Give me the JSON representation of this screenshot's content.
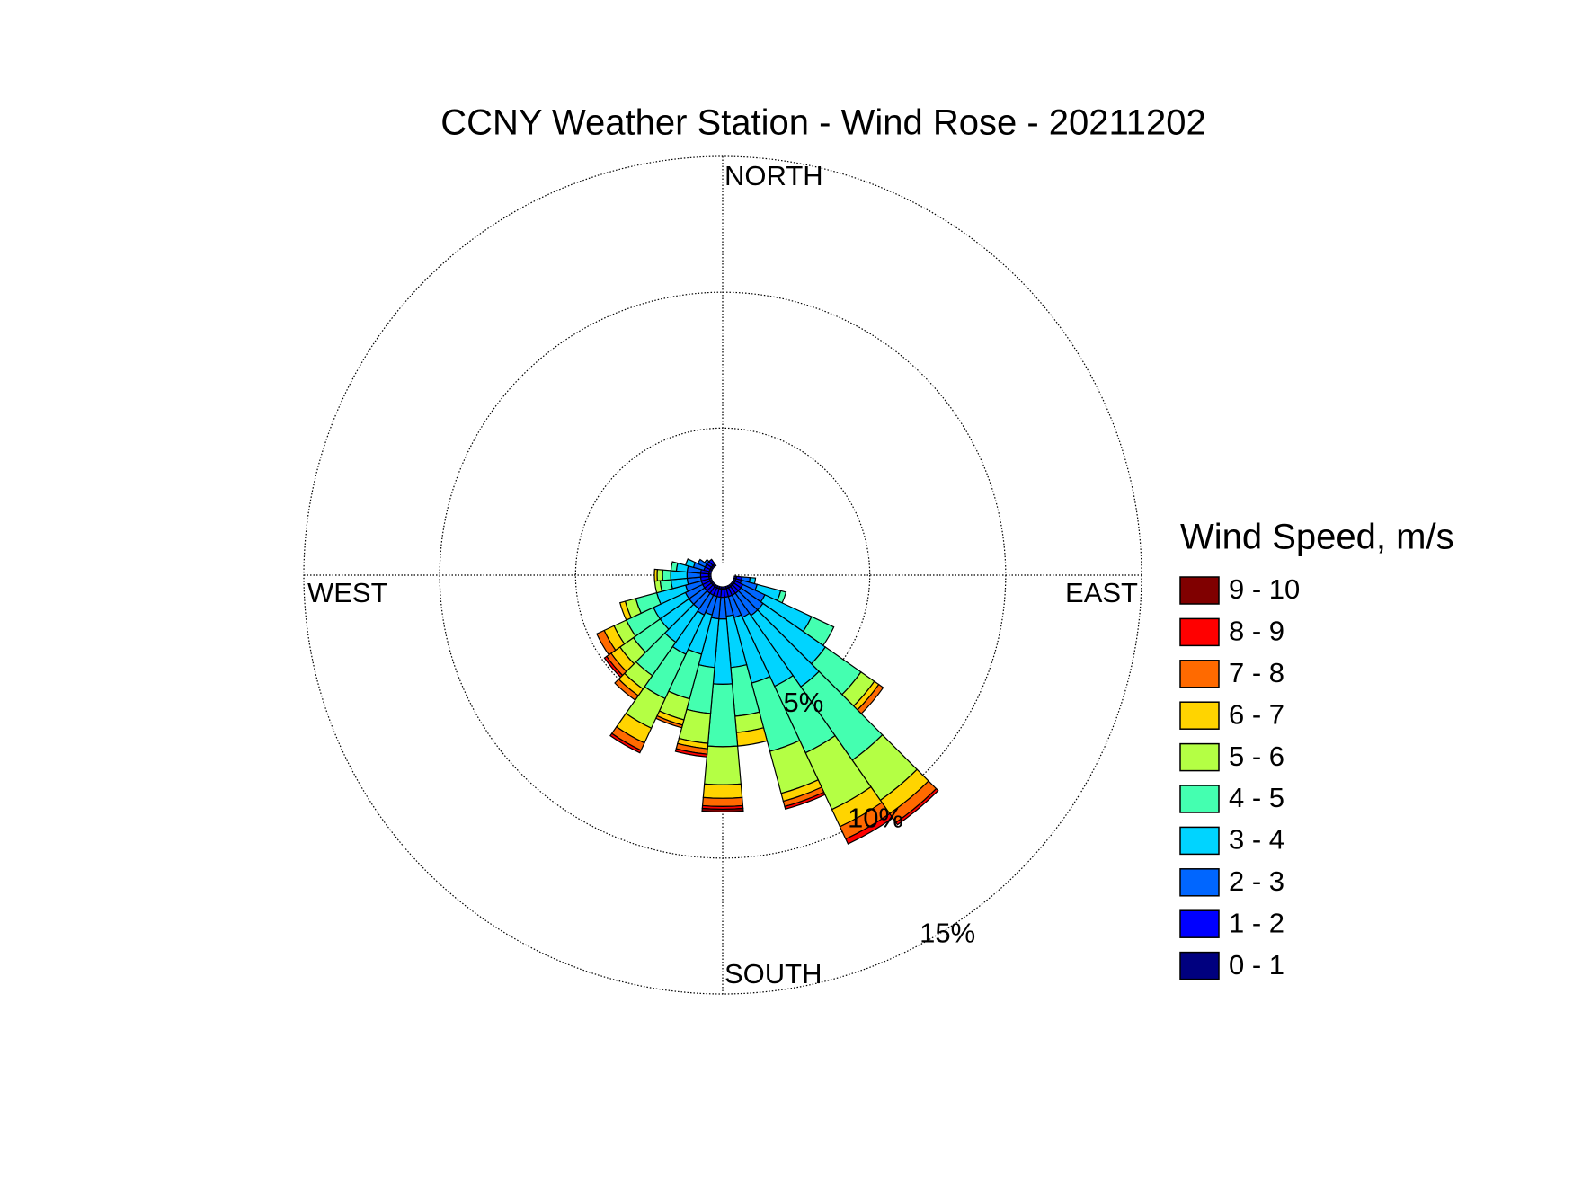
{
  "chart_data": {
    "type": "windrose",
    "title": "CCNY Weather Station - Wind Rose - 20211202",
    "compass_labels": [
      "NORTH",
      "EAST",
      "SOUTH",
      "WEST"
    ],
    "directions": [
      100,
      110,
      120,
      130,
      140,
      150,
      160,
      170,
      180,
      190,
      200,
      210,
      220,
      230,
      240,
      250,
      260,
      270,
      280,
      290,
      300,
      310,
      320
    ],
    "rlim": [
      0,
      15
    ],
    "rticks": [
      {
        "value": 5,
        "label": "5%"
      },
      {
        "value": 10,
        "label": "10%"
      },
      {
        "value": 15,
        "label": "15%"
      }
    ],
    "grid": true,
    "legend_title": "Wind Speed, m/s",
    "series": [
      {
        "name": "0 - 1",
        "color": "#00007f",
        "values": [
          0.1,
          0.1,
          0.1,
          0.1,
          0.1,
          0.1,
          0.1,
          0.1,
          0.1,
          0.1,
          0.1,
          0.1,
          0.1,
          0.1,
          0.1,
          0.1,
          0.1,
          0.1,
          0.1,
          0.1,
          0.1,
          0.1,
          0.1
        ]
      },
      {
        "name": "1 - 2",
        "color": "#0000ff",
        "values": [
          0.2,
          0.2,
          0.3,
          0.3,
          0.3,
          0.3,
          0.3,
          0.3,
          0.3,
          0.3,
          0.3,
          0.3,
          0.3,
          0.3,
          0.3,
          0.3,
          0.3,
          0.3,
          0.3,
          0.2,
          0.2,
          0.2,
          0.2
        ]
      },
      {
        "name": "2 - 3",
        "color": "#0066ff",
        "values": [
          0.3,
          0.6,
          0.9,
          1.0,
          1.0,
          0.9,
          0.8,
          0.7,
          0.8,
          0.8,
          0.7,
          0.8,
          0.7,
          0.7,
          0.7,
          0.6,
          0.5,
          0.5,
          0.5,
          0.4,
          0.3,
          0.1,
          0
        ]
      },
      {
        "name": "3 - 4",
        "color": "#00d4ff",
        "values": [
          0.2,
          0.9,
          1.9,
          2.8,
          3.2,
          2.8,
          2.5,
          1.9,
          2.4,
          1.8,
          1.5,
          1.6,
          1.5,
          1.3,
          1.3,
          1.1,
          0.6,
          0.6,
          0.4,
          0.3,
          0,
          0,
          0
        ]
      },
      {
        "name": "4 - 5",
        "color": "#44ffb0",
        "values": [
          0,
          0.2,
          0.9,
          1.6,
          3.3,
          2.7,
          2.6,
          1.8,
          2.3,
          1.7,
          1.7,
          1.8,
          1.5,
          1.2,
          1.1,
          0.8,
          0.4,
          0.3,
          0.2,
          0,
          0,
          0,
          0
        ]
      },
      {
        "name": "5 - 6",
        "color": "#b4ff44",
        "values": [
          0,
          0,
          0,
          0.6,
          1.8,
          2.3,
          1.6,
          0.6,
          1.4,
          1.1,
          0.8,
          1.2,
          0.6,
          0.6,
          0.5,
          0.4,
          0.2,
          0.2,
          0,
          0,
          0,
          0,
          0
        ]
      },
      {
        "name": "6 - 7",
        "color": "#ffd400",
        "values": [
          0,
          0,
          0,
          0.2,
          0.6,
          0.7,
          0.3,
          0.5,
          0.5,
          0.2,
          0.2,
          0.6,
          0.3,
          0.4,
          0.4,
          0.2,
          0,
          0.1,
          0,
          0,
          0,
          0,
          0
        ]
      },
      {
        "name": "7 - 8",
        "color": "#ff6a00",
        "values": [
          0,
          0,
          0,
          0.2,
          0.4,
          0.5,
          0.2,
          0,
          0.3,
          0.2,
          0.1,
          0.3,
          0.2,
          0.2,
          0.3,
          0,
          0,
          0,
          0,
          0,
          0,
          0,
          0
        ]
      },
      {
        "name": "8 - 9",
        "color": "#ff0000",
        "values": [
          0,
          0,
          0,
          0,
          0.1,
          0.2,
          0.1,
          0,
          0.1,
          0.1,
          0,
          0.1,
          0,
          0.1,
          0,
          0,
          0,
          0,
          0,
          0,
          0,
          0,
          0
        ]
      },
      {
        "name": "9 - 10",
        "color": "#800000",
        "values": [
          0,
          0,
          0,
          0,
          0,
          0,
          0,
          0,
          0.1,
          0,
          0,
          0,
          0,
          0,
          0,
          0,
          0,
          0,
          0,
          0,
          0,
          0,
          0
        ]
      }
    ]
  }
}
